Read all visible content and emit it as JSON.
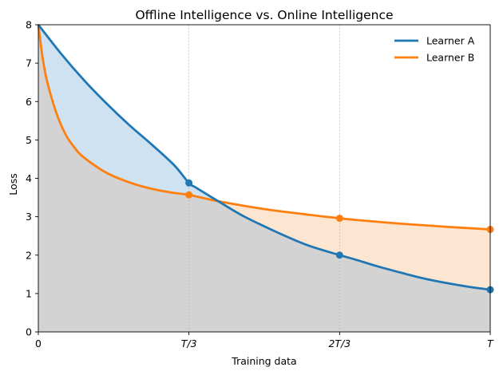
{
  "chart_data": {
    "type": "line",
    "title": "Offline Intelligence vs. Online Intelligence",
    "xlabel": "Training data",
    "ylabel": "Loss",
    "xlim": [
      0,
      1
    ],
    "ylim": [
      0,
      8
    ],
    "x_ticks": [
      {
        "value": 0,
        "label": "0"
      },
      {
        "value": 0.3333,
        "label": "T/3"
      },
      {
        "value": 0.6667,
        "label": "2T/3"
      },
      {
        "value": 1,
        "label": "T"
      }
    ],
    "y_ticks": [
      0,
      1,
      2,
      3,
      4,
      5,
      6,
      7,
      8
    ],
    "vertical_guides": [
      0.3333,
      0.6667
    ],
    "legend_position": "top-right",
    "series": [
      {
        "name": "Learner A",
        "color": "#1f77b4",
        "fill_color": "#cfe2f1",
        "x": [
          0,
          0.05,
          0.1,
          0.15,
          0.2,
          0.25,
          0.3,
          0.3333,
          0.35,
          0.4,
          0.45,
          0.5,
          0.55,
          0.6,
          0.6667,
          0.7,
          0.75,
          0.8,
          0.85,
          0.9,
          0.95,
          1
        ],
        "y": [
          8.0,
          7.25,
          6.57,
          5.96,
          5.4,
          4.89,
          4.35,
          3.88,
          3.75,
          3.39,
          3.04,
          2.75,
          2.48,
          2.24,
          2.0,
          1.89,
          1.71,
          1.55,
          1.4,
          1.28,
          1.18,
          1.1
        ],
        "markers": [
          {
            "x": 0.3333,
            "y": 3.88
          },
          {
            "x": 0.6667,
            "y": 2.0
          },
          {
            "x": 1,
            "y": 1.1
          }
        ]
      },
      {
        "name": "Learner B",
        "color": "#ff7f0e",
        "fill_color": "#fde6d1",
        "x": [
          0,
          0.01,
          0.02,
          0.04,
          0.06,
          0.08,
          0.1,
          0.15,
          0.2,
          0.25,
          0.3,
          0.3333,
          0.4,
          0.5,
          0.6,
          0.6667,
          0.7,
          0.8,
          0.9,
          1
        ],
        "y": [
          8.0,
          7.1,
          6.5,
          5.7,
          5.15,
          4.8,
          4.55,
          4.15,
          3.9,
          3.73,
          3.62,
          3.57,
          3.4,
          3.2,
          3.05,
          2.96,
          2.92,
          2.82,
          2.74,
          2.67
        ],
        "markers": [
          {
            "x": 0.3333,
            "y": 3.57
          },
          {
            "x": 0.6667,
            "y": 2.96
          },
          {
            "x": 1,
            "y": 2.67
          }
        ]
      }
    ],
    "shared_fill_color": "#d3d3d3"
  }
}
